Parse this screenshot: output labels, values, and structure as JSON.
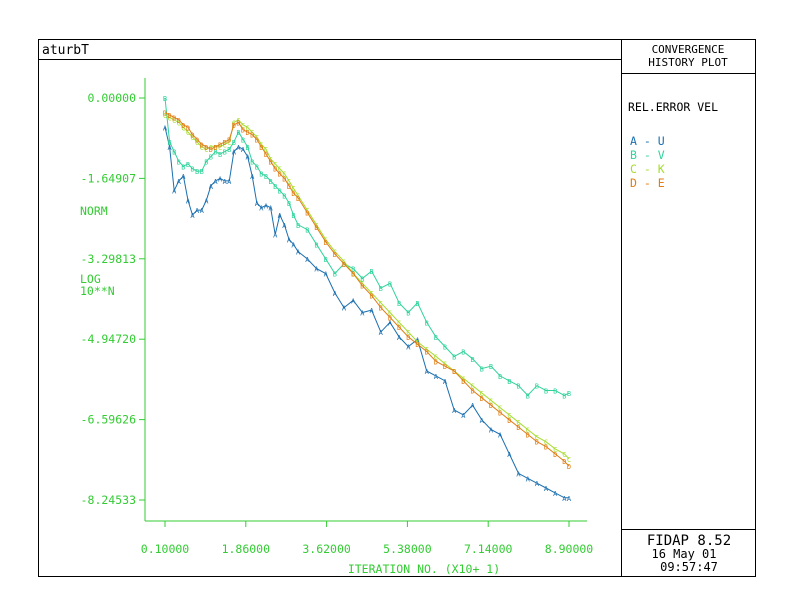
{
  "plot_title": "aturbT",
  "header": {
    "line1": "CONVERGENCE",
    "line2": "HISTORY PLOT"
  },
  "legend_title": "REL.ERROR VEL",
  "legend": [
    {
      "text": "A - U",
      "color": "#1a6fb0"
    },
    {
      "text": "B - V",
      "color": "#2fd39a"
    },
    {
      "text": "C - K",
      "color": "#a4dc2a"
    },
    {
      "text": "D - E",
      "color": "#e07d14"
    }
  ],
  "footer": {
    "software": "FIDAP 8.52",
    "date": "16 May 01",
    "time": "09:57:47"
  },
  "y_axis_label": {
    "line1": "NORM",
    "line2": "LOG",
    "line3": "10**N"
  },
  "x_axis_label": "ITERATION NO. (X10+ 1)",
  "chart_data": {
    "type": "line",
    "x_ticks": [
      "0.10000",
      "1.86000",
      "3.62000",
      "5.38000",
      "7.14000",
      "8.90000"
    ],
    "y_ticks": [
      "0.00000",
      "-1.64907",
      "-3.29813",
      "-4.94720",
      "-6.59626",
      "-8.24533"
    ],
    "xlim": [
      0.1,
      8.9
    ],
    "ylim": [
      0.0,
      -8.24533
    ],
    "series": [
      {
        "name": "U",
        "marker": "A",
        "color": "#1a6fb0",
        "points": [
          [
            0.1,
            -0.6
          ],
          [
            0.2,
            -1.0
          ],
          [
            0.3,
            -1.9
          ],
          [
            0.4,
            -1.7
          ],
          [
            0.5,
            -1.6
          ],
          [
            0.6,
            -2.1
          ],
          [
            0.7,
            -2.4
          ],
          [
            0.8,
            -2.3
          ],
          [
            0.9,
            -2.3
          ],
          [
            1.0,
            -2.1
          ],
          [
            1.1,
            -1.8
          ],
          [
            1.2,
            -1.7
          ],
          [
            1.3,
            -1.65
          ],
          [
            1.4,
            -1.7
          ],
          [
            1.5,
            -1.7
          ],
          [
            1.6,
            -1.1
          ],
          [
            1.7,
            -1.0
          ],
          [
            1.8,
            -1.05
          ],
          [
            1.9,
            -1.2
          ],
          [
            2.0,
            -1.6
          ],
          [
            2.1,
            -2.15
          ],
          [
            2.2,
            -2.25
          ],
          [
            2.3,
            -2.2
          ],
          [
            2.4,
            -2.25
          ],
          [
            2.5,
            -2.8
          ],
          [
            2.6,
            -2.4
          ],
          [
            2.7,
            -2.6
          ],
          [
            2.8,
            -2.9
          ],
          [
            2.9,
            -3.0
          ],
          [
            3.0,
            -3.15
          ],
          [
            3.2,
            -3.3
          ],
          [
            3.4,
            -3.5
          ],
          [
            3.6,
            -3.6
          ],
          [
            3.8,
            -4.0
          ],
          [
            4.0,
            -4.3
          ],
          [
            4.2,
            -4.15
          ],
          [
            4.4,
            -4.4
          ],
          [
            4.6,
            -4.35
          ],
          [
            4.8,
            -4.8
          ],
          [
            5.0,
            -4.6
          ],
          [
            5.2,
            -4.9
          ],
          [
            5.4,
            -5.1
          ],
          [
            5.6,
            -4.95
          ],
          [
            5.8,
            -5.6
          ],
          [
            6.0,
            -5.7
          ],
          [
            6.2,
            -5.8
          ],
          [
            6.4,
            -6.4
          ],
          [
            6.6,
            -6.5
          ],
          [
            6.8,
            -6.3
          ],
          [
            7.0,
            -6.6
          ],
          [
            7.2,
            -6.8
          ],
          [
            7.4,
            -6.9
          ],
          [
            7.6,
            -7.3
          ],
          [
            7.8,
            -7.7
          ],
          [
            8.0,
            -7.8
          ],
          [
            8.2,
            -7.9
          ],
          [
            8.4,
            -8.0
          ],
          [
            8.6,
            -8.1
          ],
          [
            8.8,
            -8.2
          ],
          [
            8.9,
            -8.2
          ]
        ]
      },
      {
        "name": "V",
        "marker": "B",
        "color": "#2fd39a",
        "points": [
          [
            0.1,
            0.0
          ],
          [
            0.2,
            -0.9
          ],
          [
            0.3,
            -1.1
          ],
          [
            0.4,
            -1.3
          ],
          [
            0.5,
            -1.4
          ],
          [
            0.6,
            -1.35
          ],
          [
            0.7,
            -1.45
          ],
          [
            0.8,
            -1.5
          ],
          [
            0.9,
            -1.5
          ],
          [
            1.0,
            -1.3
          ],
          [
            1.1,
            -1.2
          ],
          [
            1.2,
            -1.1
          ],
          [
            1.3,
            -1.15
          ],
          [
            1.4,
            -1.1
          ],
          [
            1.5,
            -1.05
          ],
          [
            1.6,
            -0.9
          ],
          [
            1.7,
            -0.7
          ],
          [
            1.8,
            -0.85
          ],
          [
            1.9,
            -1.0
          ],
          [
            2.0,
            -1.3
          ],
          [
            2.1,
            -1.4
          ],
          [
            2.2,
            -1.55
          ],
          [
            2.3,
            -1.6
          ],
          [
            2.4,
            -1.7
          ],
          [
            2.5,
            -1.8
          ],
          [
            2.6,
            -1.9
          ],
          [
            2.7,
            -2.0
          ],
          [
            2.8,
            -2.15
          ],
          [
            2.9,
            -2.4
          ],
          [
            3.0,
            -2.6
          ],
          [
            3.2,
            -2.7
          ],
          [
            3.4,
            -3.0
          ],
          [
            3.6,
            -3.3
          ],
          [
            3.8,
            -3.6
          ],
          [
            4.0,
            -3.4
          ],
          [
            4.2,
            -3.5
          ],
          [
            4.4,
            -3.7
          ],
          [
            4.6,
            -3.55
          ],
          [
            4.8,
            -3.9
          ],
          [
            5.0,
            -3.8
          ],
          [
            5.2,
            -4.2
          ],
          [
            5.4,
            -4.4
          ],
          [
            5.6,
            -4.2
          ],
          [
            5.8,
            -4.6
          ],
          [
            6.0,
            -4.9
          ],
          [
            6.2,
            -5.1
          ],
          [
            6.4,
            -5.3
          ],
          [
            6.6,
            -5.2
          ],
          [
            6.8,
            -5.35
          ],
          [
            7.0,
            -5.55
          ],
          [
            7.2,
            -5.5
          ],
          [
            7.4,
            -5.7
          ],
          [
            7.6,
            -5.8
          ],
          [
            7.8,
            -5.9
          ],
          [
            8.0,
            -6.1
          ],
          [
            8.2,
            -5.9
          ],
          [
            8.4,
            -6.0
          ],
          [
            8.6,
            -6.0
          ],
          [
            8.8,
            -6.1
          ],
          [
            8.9,
            -6.05
          ]
        ]
      },
      {
        "name": "K",
        "marker": "C",
        "color": "#a4dc2a",
        "points": [
          [
            0.1,
            -0.35
          ],
          [
            0.2,
            -0.4
          ],
          [
            0.3,
            -0.45
          ],
          [
            0.4,
            -0.5
          ],
          [
            0.5,
            -0.6
          ],
          [
            0.6,
            -0.7
          ],
          [
            0.7,
            -0.8
          ],
          [
            0.8,
            -0.9
          ],
          [
            0.9,
            -1.0
          ],
          [
            1.0,
            -1.05
          ],
          [
            1.1,
            -1.0
          ],
          [
            1.2,
            -1.0
          ],
          [
            1.3,
            -1.0
          ],
          [
            1.4,
            -0.95
          ],
          [
            1.5,
            -0.9
          ],
          [
            1.6,
            -0.5
          ],
          [
            1.7,
            -0.45
          ],
          [
            1.8,
            -0.55
          ],
          [
            1.9,
            -0.6
          ],
          [
            2.0,
            -0.7
          ],
          [
            2.1,
            -0.8
          ],
          [
            2.2,
            -0.95
          ],
          [
            2.3,
            -1.05
          ],
          [
            2.4,
            -1.25
          ],
          [
            2.5,
            -1.35
          ],
          [
            2.6,
            -1.45
          ],
          [
            2.7,
            -1.55
          ],
          [
            2.8,
            -1.7
          ],
          [
            2.9,
            -1.85
          ],
          [
            3.0,
            -2.0
          ],
          [
            3.2,
            -2.3
          ],
          [
            3.4,
            -2.6
          ],
          [
            3.6,
            -2.9
          ],
          [
            3.8,
            -3.15
          ],
          [
            4.0,
            -3.35
          ],
          [
            4.2,
            -3.6
          ],
          [
            4.4,
            -3.8
          ],
          [
            4.6,
            -4.0
          ],
          [
            4.8,
            -4.2
          ],
          [
            5.0,
            -4.4
          ],
          [
            5.2,
            -4.6
          ],
          [
            5.4,
            -4.8
          ],
          [
            5.6,
            -5.0
          ],
          [
            5.8,
            -5.15
          ],
          [
            6.0,
            -5.3
          ],
          [
            6.2,
            -5.45
          ],
          [
            6.4,
            -5.6
          ],
          [
            6.6,
            -5.75
          ],
          [
            6.8,
            -5.9
          ],
          [
            7.0,
            -6.05
          ],
          [
            7.2,
            -6.2
          ],
          [
            7.4,
            -6.35
          ],
          [
            7.6,
            -6.5
          ],
          [
            7.8,
            -6.65
          ],
          [
            8.0,
            -6.8
          ],
          [
            8.2,
            -6.95
          ],
          [
            8.4,
            -7.05
          ],
          [
            8.6,
            -7.2
          ],
          [
            8.8,
            -7.3
          ],
          [
            8.9,
            -7.4
          ]
        ]
      },
      {
        "name": "E",
        "marker": "D",
        "color": "#e07d14",
        "points": [
          [
            0.1,
            -0.3
          ],
          [
            0.2,
            -0.35
          ],
          [
            0.3,
            -0.4
          ],
          [
            0.4,
            -0.45
          ],
          [
            0.5,
            -0.55
          ],
          [
            0.6,
            -0.6
          ],
          [
            0.7,
            -0.75
          ],
          [
            0.8,
            -0.85
          ],
          [
            0.9,
            -0.95
          ],
          [
            1.0,
            -1.0
          ],
          [
            1.1,
            -1.05
          ],
          [
            1.2,
            -1.0
          ],
          [
            1.3,
            -0.95
          ],
          [
            1.4,
            -0.9
          ],
          [
            1.5,
            -0.85
          ],
          [
            1.6,
            -0.55
          ],
          [
            1.7,
            -0.5
          ],
          [
            1.8,
            -0.65
          ],
          [
            1.9,
            -0.7
          ],
          [
            2.0,
            -0.75
          ],
          [
            2.1,
            -0.85
          ],
          [
            2.2,
            -1.0
          ],
          [
            2.3,
            -1.15
          ],
          [
            2.4,
            -1.3
          ],
          [
            2.5,
            -1.45
          ],
          [
            2.6,
            -1.55
          ],
          [
            2.7,
            -1.65
          ],
          [
            2.8,
            -1.8
          ],
          [
            2.9,
            -1.95
          ],
          [
            3.0,
            -2.05
          ],
          [
            3.2,
            -2.35
          ],
          [
            3.4,
            -2.65
          ],
          [
            3.6,
            -2.95
          ],
          [
            3.8,
            -3.2
          ],
          [
            4.0,
            -3.4
          ],
          [
            4.2,
            -3.6
          ],
          [
            4.4,
            -3.85
          ],
          [
            4.6,
            -4.05
          ],
          [
            4.8,
            -4.3
          ],
          [
            5.0,
            -4.5
          ],
          [
            5.2,
            -4.7
          ],
          [
            5.4,
            -4.9
          ],
          [
            5.6,
            -5.05
          ],
          [
            5.8,
            -5.2
          ],
          [
            6.0,
            -5.4
          ],
          [
            6.2,
            -5.5
          ],
          [
            6.4,
            -5.6
          ],
          [
            6.6,
            -5.8
          ],
          [
            6.8,
            -6.0
          ],
          [
            7.0,
            -6.15
          ],
          [
            7.2,
            -6.3
          ],
          [
            7.4,
            -6.45
          ],
          [
            7.6,
            -6.6
          ],
          [
            7.8,
            -6.75
          ],
          [
            8.0,
            -6.9
          ],
          [
            8.2,
            -7.05
          ],
          [
            8.4,
            -7.15
          ],
          [
            8.6,
            -7.3
          ],
          [
            8.8,
            -7.45
          ],
          [
            8.9,
            -7.55
          ]
        ]
      }
    ]
  }
}
